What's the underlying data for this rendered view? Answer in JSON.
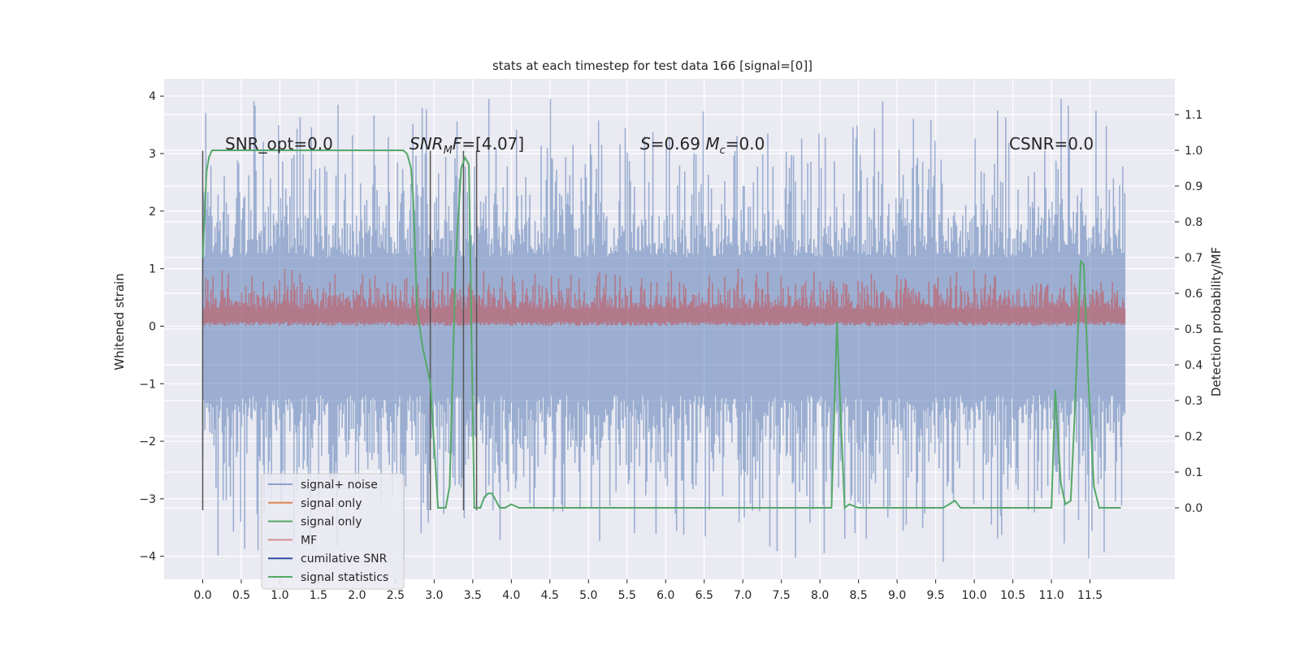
{
  "chart_data": {
    "type": "line",
    "title": "stats at each timestep for test data 166 [signal=[0]]",
    "ylabel_left": "Whitened strain",
    "ylabel_right": "Detection probability/MF",
    "xlim": [
      -0.5,
      12.6
    ],
    "ylim_left": [
      -4.4,
      4.3
    ],
    "ylim_right": [
      -0.2,
      1.2
    ],
    "grid": true,
    "x_ticks": [
      "0.0",
      "0.5",
      "1.0",
      "1.5",
      "2.0",
      "2.5",
      "3.0",
      "3.5",
      "4.0",
      "4.5",
      "5.0",
      "5.5",
      "6.0",
      "6.5",
      "7.0",
      "7.5",
      "8.0",
      "8.5",
      "9.0",
      "9.5",
      "10.0",
      "10.5",
      "11.0",
      "11.5"
    ],
    "y_ticks_left": [
      "4",
      "3",
      "2",
      "1",
      "0",
      "−1",
      "−2",
      "−3",
      "−4"
    ],
    "y_ticks_right": [
      "1.1",
      "1.0",
      "0.9",
      "0.8",
      "0.7",
      "0.6",
      "0.5",
      "0.4",
      "0.3",
      "0.2",
      "0.1",
      "0.0"
    ],
    "annotations": [
      {
        "parts": [
          {
            "t": "SNR_opt=0.0"
          }
        ]
      },
      {
        "parts": [
          {
            "t": "SNR",
            "i": true
          },
          {
            "t": "M",
            "i": true,
            "sub": true
          },
          {
            "t": "F",
            "i": true
          },
          {
            "t": "=[4.07]"
          }
        ]
      },
      {
        "parts": [
          {
            "t": "S",
            "i": true
          },
          {
            "t": "=0.69   "
          },
          {
            "t": "M",
            "i": true
          },
          {
            "t": "c",
            "i": true,
            "sub": true
          },
          {
            "t": "=0.0"
          }
        ]
      },
      {
        "parts": [
          {
            "t": "CSNR=0.0"
          }
        ]
      }
    ],
    "legend_position": "lower-left",
    "series": [
      {
        "name": "signal+ noise",
        "color": "#4c72b0",
        "style": "noise-band",
        "x_range": [
          0.0,
          11.95
        ],
        "amplitude": [
          -4.1,
          3.95
        ]
      },
      {
        "name": "signal only",
        "color": "#dd8452",
        "values": []
      },
      {
        "name": "signal only",
        "color": "#55a868",
        "values": []
      },
      {
        "name": "MF",
        "color": "#c44e52",
        "style": "noise-band",
        "x_range": [
          0.0,
          11.95
        ],
        "amplitude": [
          0.0,
          1.0
        ]
      },
      {
        "name": "cumilative SNR",
        "color": "#3050a0",
        "values": []
      },
      {
        "name": "signal statistics",
        "color": "#55a868",
        "x": [
          0.0,
          0.05,
          0.08,
          0.12,
          0.2,
          0.5,
          1.0,
          2.0,
          2.5,
          2.6,
          2.65,
          2.7,
          2.73,
          2.78,
          2.85,
          2.95,
          3.05,
          3.1,
          3.15,
          3.2,
          3.28,
          3.35,
          3.4,
          3.45,
          3.48,
          3.52,
          3.55,
          3.6,
          3.65,
          3.7,
          3.75,
          3.85,
          3.92,
          4.0,
          4.1,
          4.2,
          4.5,
          5.0,
          6.0,
          7.0,
          8.0,
          8.15,
          8.22,
          8.26,
          8.32,
          8.38,
          8.5,
          8.6,
          8.7,
          9.0,
          9.2,
          9.3,
          9.4,
          9.6,
          9.75,
          9.82,
          9.9,
          10.0,
          10.5,
          10.8,
          11.0,
          11.05,
          11.12,
          11.18,
          11.25,
          11.3,
          11.38,
          11.42,
          11.48,
          11.55,
          11.62,
          11.7,
          11.9
        ],
        "y": [
          0.7,
          0.94,
          0.98,
          1.0,
          1.0,
          1.0,
          1.0,
          1.0,
          1.0,
          1.0,
          0.99,
          0.95,
          0.86,
          0.55,
          0.45,
          0.35,
          0.0,
          0.0,
          0.0,
          0.06,
          0.7,
          0.95,
          0.98,
          0.96,
          0.55,
          0.0,
          0.0,
          0.0,
          0.03,
          0.04,
          0.04,
          0.0,
          0.0,
          0.01,
          0.0,
          0.0,
          0.0,
          0.0,
          0.0,
          0.0,
          0.0,
          0.0,
          0.52,
          0.3,
          0.0,
          0.01,
          0.0,
          0.0,
          0.0,
          0.0,
          0.0,
          0.0,
          0.0,
          0.0,
          0.02,
          0.0,
          0.0,
          0.0,
          0.0,
          0.0,
          0.0,
          0.33,
          0.07,
          0.01,
          0.02,
          0.25,
          0.69,
          0.68,
          0.35,
          0.06,
          0.0,
          0.0,
          0.0
        ]
      }
    ],
    "vertical_lines_x": [
      0.0,
      2.95,
      3.38,
      3.55
    ]
  }
}
